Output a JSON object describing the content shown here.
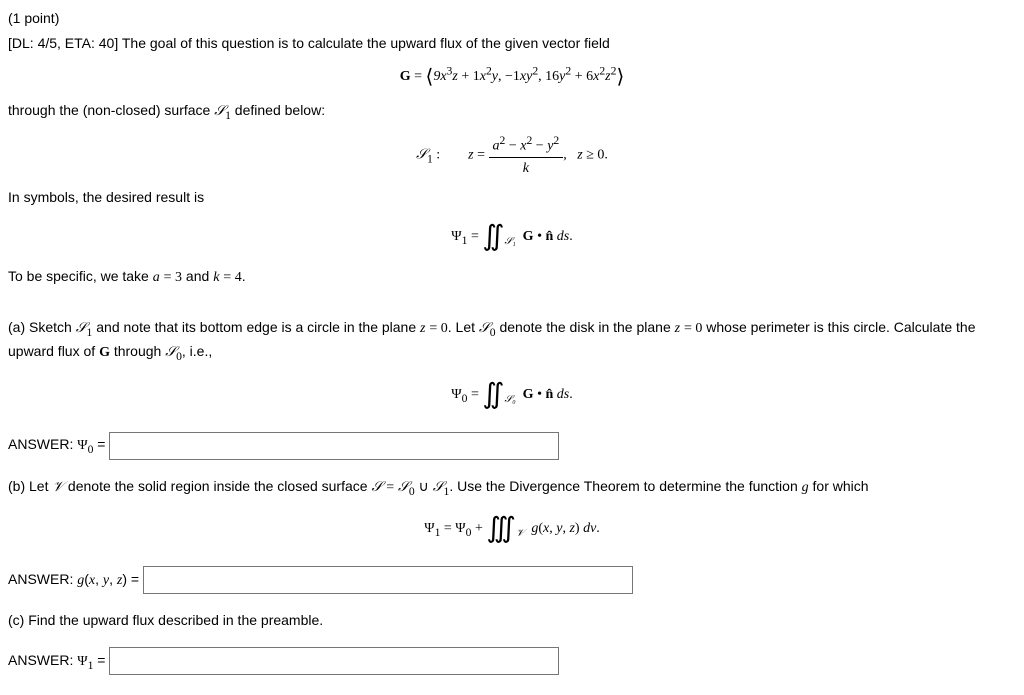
{
  "header": {
    "points": "(1 point)",
    "preamble_line": "[DL: 4/5, ETA: 40] The goal of this question is to calculate the upward flux of the given vector field"
  },
  "vector_field": {
    "lhs": "G",
    "eq": "=",
    "components": "⟨9x³z + 1x²y,  −1xy²,  16y² + 6x²z²⟩"
  },
  "surface_intro": "through the (non-closed) surface 𝒮₁ defined below:",
  "surface_def": {
    "label": "𝒮₁ :",
    "z_eq": "z =",
    "frac_num": "a² − x² − y²",
    "frac_den": "k",
    "cond": ",   z ≥ 0."
  },
  "symbols_line": "In symbols, the desired result is",
  "psi1_def": {
    "lhs": "Ψ₁ =",
    "int_sub": "𝒮₁",
    "integrand": "G • n̂ ds."
  },
  "specifics": "To be specific, we take a = 3 and k = 4.",
  "part_a": {
    "text": "(a) Sketch 𝒮₁ and note that its bottom edge is a circle in the plane z = 0. Let 𝒮₀ denote the disk in the plane z = 0 whose perimeter is this circle. Calculate the upward flux of G through 𝒮₀, i.e.,",
    "psi0_lhs": "Ψ₀ =",
    "int_sub": "𝒮₀",
    "integrand": "G • n̂ ds.",
    "answer_label": "ANSWER: Ψ₀ ="
  },
  "part_b": {
    "text": "(b) Let 𝒱 denote the solid region inside the closed surface 𝒮 = 𝒮₀ ∪ 𝒮₁. Use the Divergence Theorem to determine the function g for which",
    "eq_lhs": "Ψ₁ = Ψ₀ +",
    "int_sub": "𝒱",
    "integrand": "g(x, y, z) dv.",
    "answer_label": "ANSWER: g(x, y, z) ="
  },
  "part_c": {
    "text": "(c) Find the upward flux described in the preamble.",
    "answer_label": "ANSWER: Ψ₁ ="
  }
}
